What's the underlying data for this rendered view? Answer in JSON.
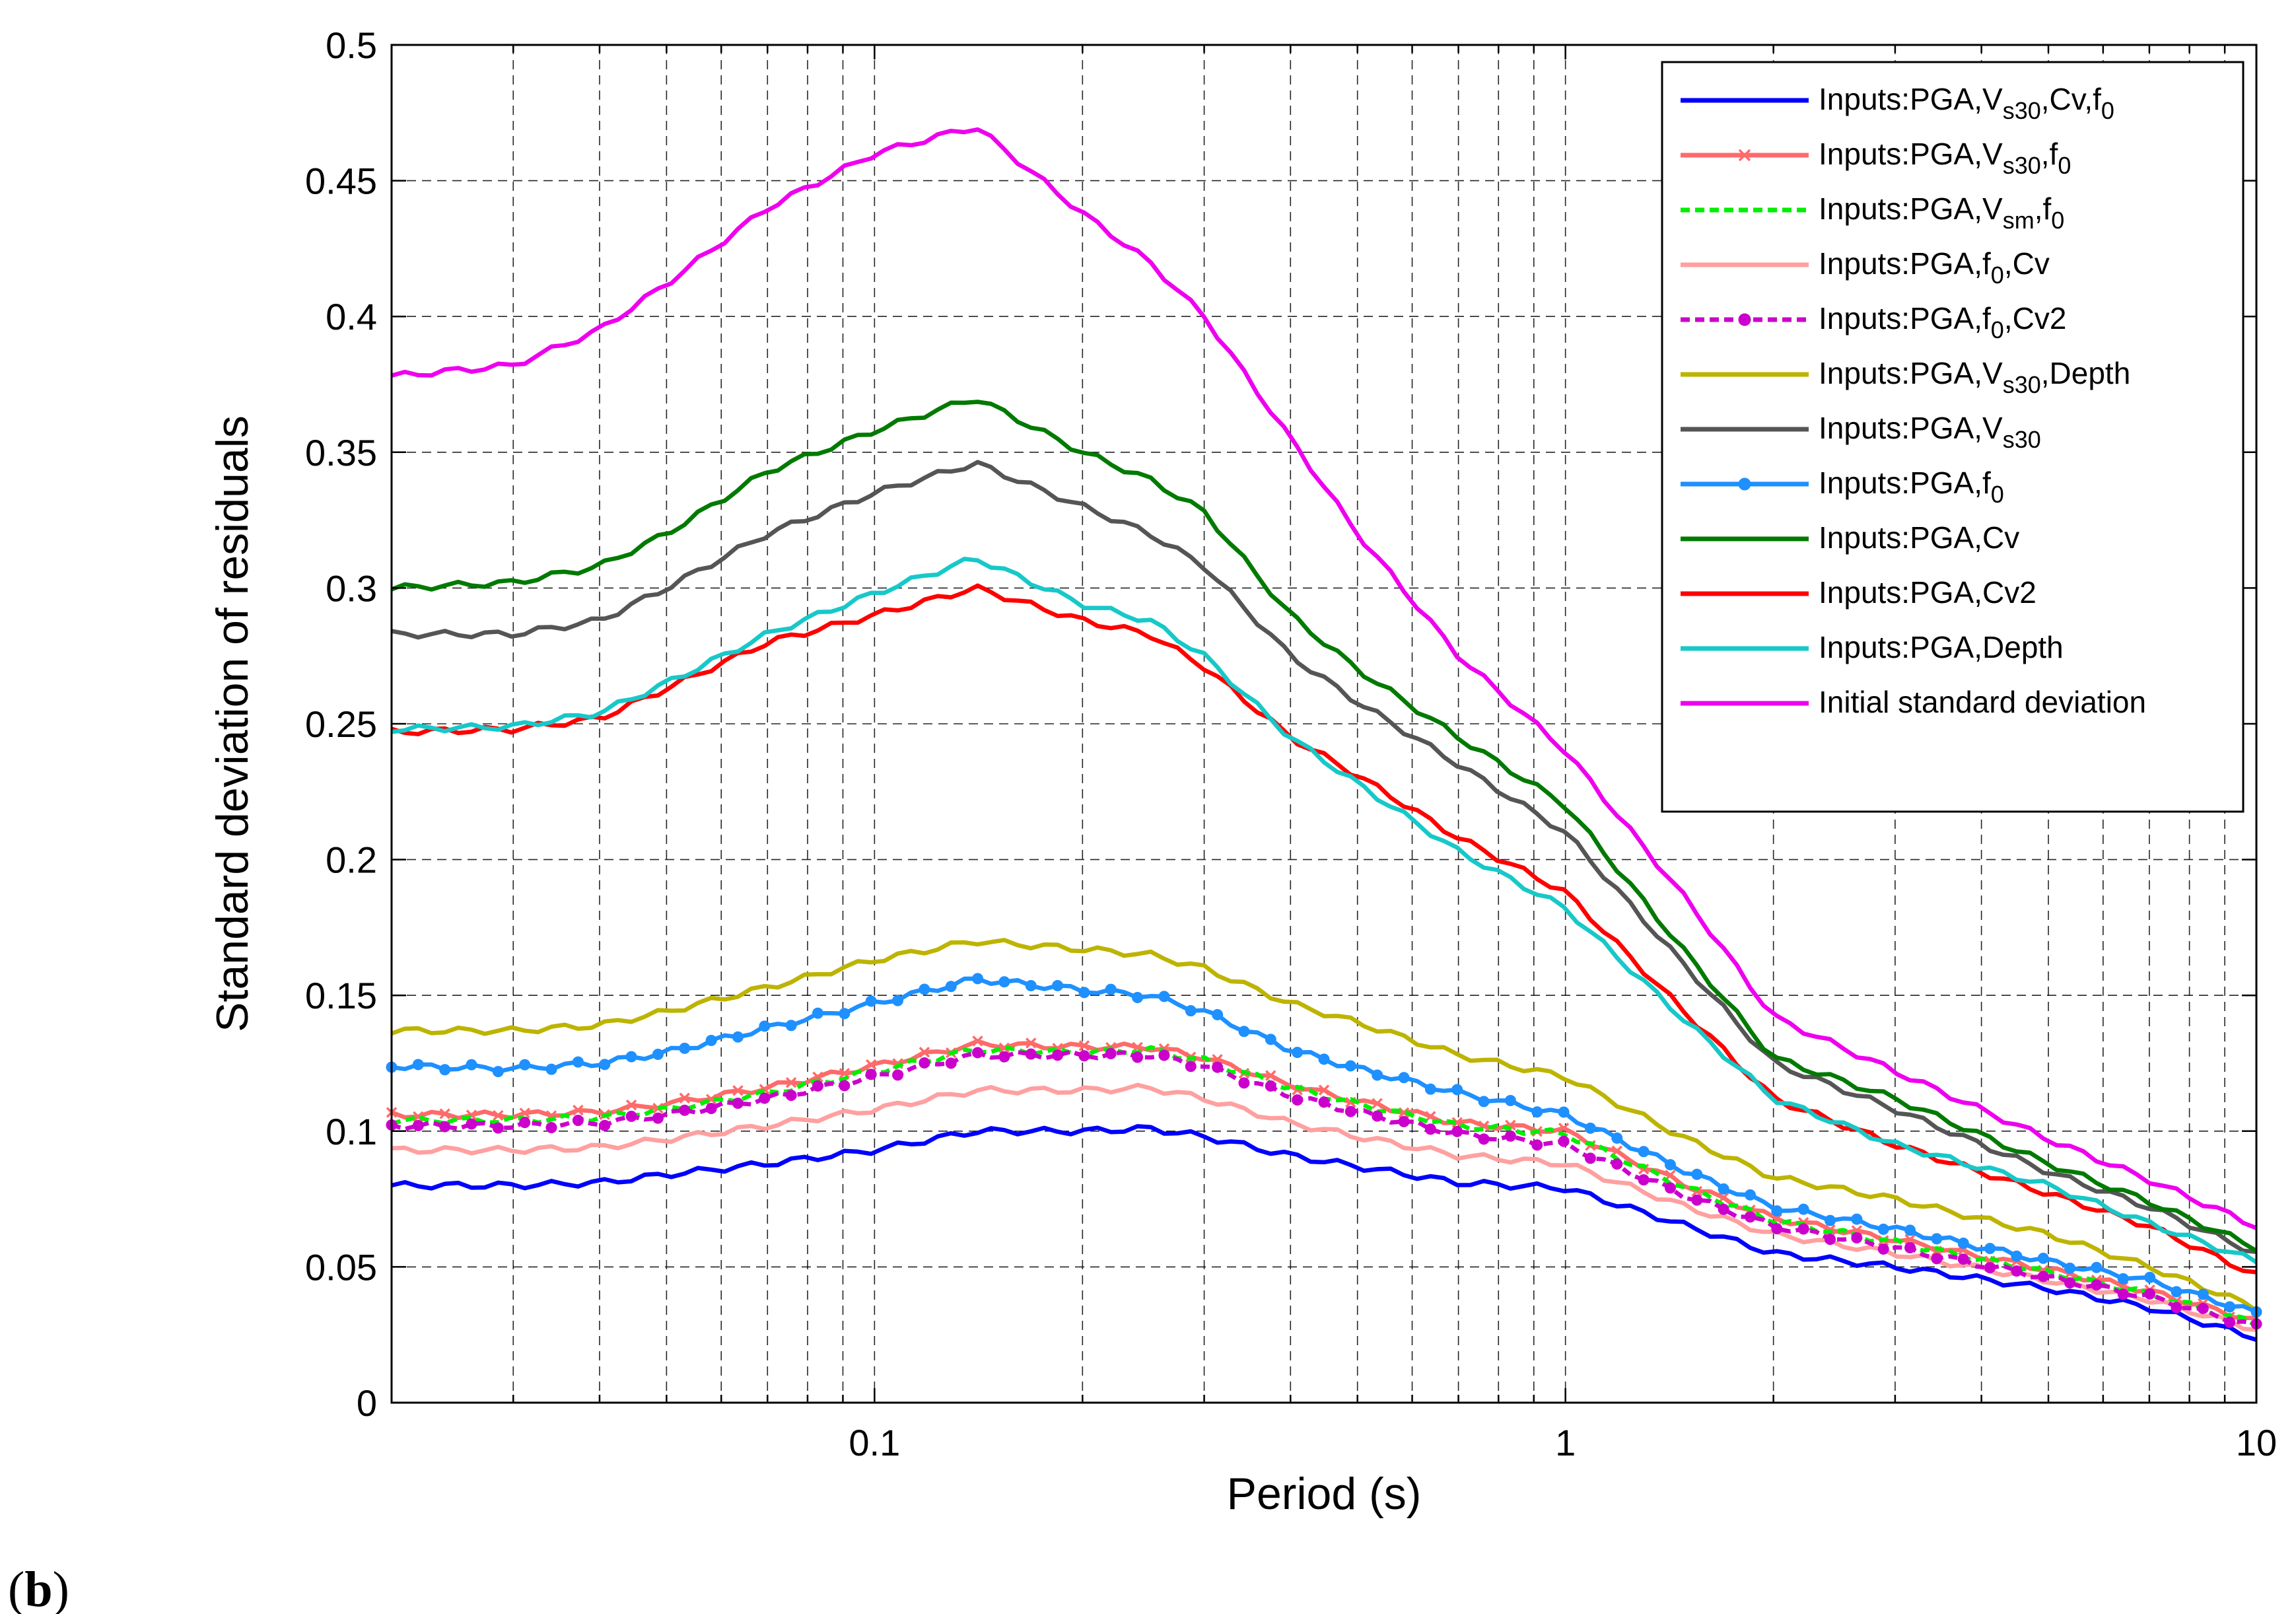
{
  "panel_label": {
    "open": "(",
    "letter": "b",
    "close": ")"
  },
  "colors": {
    "s1": "#0000ff",
    "s2": "#ff6a6a",
    "s3": "#00ee00",
    "s4": "#ffa0a0",
    "s5": "#cc00cc",
    "s6": "#bdb400",
    "s7": "#555555",
    "s8": "#1e90ff",
    "s9": "#007a00",
    "s10": "#ff0000",
    "s11": "#18c8c8",
    "s12": "#ee00ee"
  },
  "chart_data": {
    "type": "line",
    "xscale": "log",
    "xlabel": "Period (s)",
    "ylabel": "Standard deviation of residuals",
    "xlim": [
      0.02,
      10
    ],
    "ylim": [
      0,
      0.5
    ],
    "xticks": [
      0.1,
      1,
      10
    ],
    "xtick_labels": [
      "0.1",
      "1",
      "10"
    ],
    "yticks": [
      0,
      0.05,
      0.1,
      0.15,
      0.2,
      0.25,
      0.3,
      0.35,
      0.4,
      0.45,
      0.5
    ],
    "ytick_labels": [
      "0",
      "0.05",
      "0.1",
      "0.15",
      "0.2",
      "0.25",
      "0.3",
      "0.35",
      "0.4",
      "0.45",
      "0.5"
    ],
    "grid": true,
    "legend_position": "top-right",
    "x": [
      0.02,
      0.03,
      0.04,
      0.05,
      0.07,
      0.1,
      0.14,
      0.2,
      0.25,
      0.3,
      0.4,
      0.5,
      0.7,
      1,
      1.5,
      2,
      3,
      5,
      7,
      10
    ],
    "series": [
      {
        "name": "Inputs:PGA,Vs30,Cv,f0",
        "legend": {
          "base": "Inputs:PGA,V",
          "sub": "s30",
          "mid": ",Cv,f",
          "sub2": "0"
        },
        "color_key": "s1",
        "dash": "",
        "marker": "",
        "values": [
          0.08,
          0.08,
          0.081,
          0.084,
          0.088,
          0.093,
          0.1,
          0.1,
          0.101,
          0.098,
          0.091,
          0.087,
          0.081,
          0.079,
          0.065,
          0.055,
          0.05,
          0.042,
          0.035,
          0.024
        ]
      },
      {
        "name": "Inputs:PGA,Vs30,f0",
        "legend": {
          "base": "Inputs:PGA,V",
          "sub": "s30",
          "mid": ",f",
          "sub2": "0"
        },
        "color_key": "s2",
        "dash": "",
        "marker": "x",
        "values": [
          0.106,
          0.106,
          0.107,
          0.11,
          0.116,
          0.124,
          0.132,
          0.131,
          0.131,
          0.127,
          0.117,
          0.111,
          0.103,
          0.1,
          0.08,
          0.068,
          0.06,
          0.049,
          0.041,
          0.03
        ]
      },
      {
        "name": "Inputs:PGA,Vsm,f0",
        "legend": {
          "base": "Inputs:PGA,V",
          "sub": "sm",
          "mid": ",f",
          "sub2": "0"
        },
        "color_key": "s3",
        "dash": "14,8",
        "marker": "",
        "values": [
          0.104,
          0.104,
          0.105,
          0.108,
          0.114,
          0.122,
          0.13,
          0.129,
          0.13,
          0.126,
          0.116,
          0.11,
          0.102,
          0.099,
          0.079,
          0.067,
          0.059,
          0.048,
          0.04,
          0.029
        ]
      },
      {
        "name": "Inputs:PGA,f0,Cv",
        "legend": {
          "base": "Inputs:PGA,f",
          "sub": "0",
          "mid": ",Cv",
          "sub2": ""
        },
        "color_key": "s4",
        "dash": "",
        "marker": "",
        "values": [
          0.093,
          0.093,
          0.094,
          0.097,
          0.102,
          0.108,
          0.115,
          0.115,
          0.116,
          0.112,
          0.103,
          0.098,
          0.091,
          0.088,
          0.072,
          0.062,
          0.055,
          0.045,
          0.038,
          0.027
        ]
      },
      {
        "name": "Inputs:PGA,f0,Cv2",
        "legend": {
          "base": "Inputs:PGA,f",
          "sub": "0",
          "mid": ",Cv2",
          "sub2": ""
        },
        "color_key": "s5",
        "dash": "14,8",
        "marker": "o",
        "values": [
          0.102,
          0.102,
          0.103,
          0.106,
          0.112,
          0.12,
          0.128,
          0.128,
          0.128,
          0.124,
          0.113,
          0.107,
          0.099,
          0.095,
          0.076,
          0.065,
          0.057,
          0.046,
          0.039,
          0.028
        ]
      },
      {
        "name": "Inputs:PGA,Vs30,Depth",
        "legend": {
          "base": "Inputs:PGA,V",
          "sub": "s30",
          "mid": ",Depth",
          "sub2": ""
        },
        "color_key": "s6",
        "dash": "",
        "marker": "",
        "values": [
          0.137,
          0.137,
          0.139,
          0.144,
          0.153,
          0.163,
          0.17,
          0.167,
          0.165,
          0.16,
          0.147,
          0.14,
          0.128,
          0.12,
          0.097,
          0.083,
          0.075,
          0.062,
          0.05,
          0.035
        ]
      },
      {
        "name": "Inputs:PGA,Vs30",
        "legend": {
          "base": "Inputs:PGA,V",
          "sub": "s30",
          "mid": "",
          "sub2": ""
        },
        "color_key": "s7",
        "dash": "",
        "marker": "",
        "values": [
          0.283,
          0.283,
          0.288,
          0.3,
          0.32,
          0.335,
          0.346,
          0.33,
          0.32,
          0.308,
          0.275,
          0.258,
          0.235,
          0.21,
          0.16,
          0.125,
          0.108,
          0.085,
          0.072,
          0.055
        ]
      },
      {
        "name": "Inputs:PGA,f0",
        "legend": {
          "base": "Inputs:PGA,f",
          "sub": "0",
          "mid": "",
          "sub2": ""
        },
        "color_key": "s8",
        "dash": "",
        "marker": "o",
        "values": [
          0.124,
          0.123,
          0.125,
          0.129,
          0.138,
          0.147,
          0.156,
          0.152,
          0.15,
          0.144,
          0.13,
          0.123,
          0.114,
          0.106,
          0.085,
          0.072,
          0.064,
          0.052,
          0.045,
          0.033
        ]
      },
      {
        "name": "Inputs:PGA,Cv",
        "legend": {
          "base": "Inputs:PGA,Cv",
          "sub": "",
          "mid": "",
          "sub2": ""
        },
        "color_key": "s9",
        "dash": "",
        "marker": "",
        "values": [
          0.3,
          0.302,
          0.308,
          0.32,
          0.343,
          0.358,
          0.37,
          0.35,
          0.34,
          0.328,
          0.29,
          0.27,
          0.245,
          0.22,
          0.165,
          0.127,
          0.112,
          0.088,
          0.074,
          0.057
        ]
      },
      {
        "name": "Inputs:PGA,Cv2",
        "legend": {
          "base": "Inputs:PGA,Cv2",
          "sub": "",
          "mid": "",
          "sub2": ""
        },
        "color_key": "s10",
        "dash": "",
        "marker": "",
        "values": [
          0.247,
          0.248,
          0.252,
          0.263,
          0.28,
          0.29,
          0.3,
          0.288,
          0.283,
          0.271,
          0.245,
          0.231,
          0.208,
          0.188,
          0.143,
          0.112,
          0.095,
          0.077,
          0.065,
          0.047
        ]
      },
      {
        "name": "Inputs:PGA,Depth",
        "legend": {
          "base": "Inputs:PGA,Depth",
          "sub": "",
          "mid": "",
          "sub2": ""
        },
        "color_key": "s11",
        "dash": "",
        "marker": "",
        "values": [
          0.248,
          0.249,
          0.254,
          0.265,
          0.283,
          0.298,
          0.311,
          0.294,
          0.288,
          0.275,
          0.245,
          0.228,
          0.203,
          0.182,
          0.14,
          0.112,
          0.095,
          0.08,
          0.066,
          0.052
        ]
      },
      {
        "name": "Initial standard deviation",
        "legend": {
          "base": "Initial standard deviation",
          "sub": "",
          "mid": "",
          "sub2": ""
        },
        "color_key": "s12",
        "dash": "",
        "marker": "",
        "values": [
          0.378,
          0.382,
          0.395,
          0.412,
          0.44,
          0.46,
          0.47,
          0.438,
          0.42,
          0.4,
          0.355,
          0.32,
          0.275,
          0.24,
          0.185,
          0.142,
          0.122,
          0.097,
          0.082,
          0.065
        ]
      }
    ]
  }
}
